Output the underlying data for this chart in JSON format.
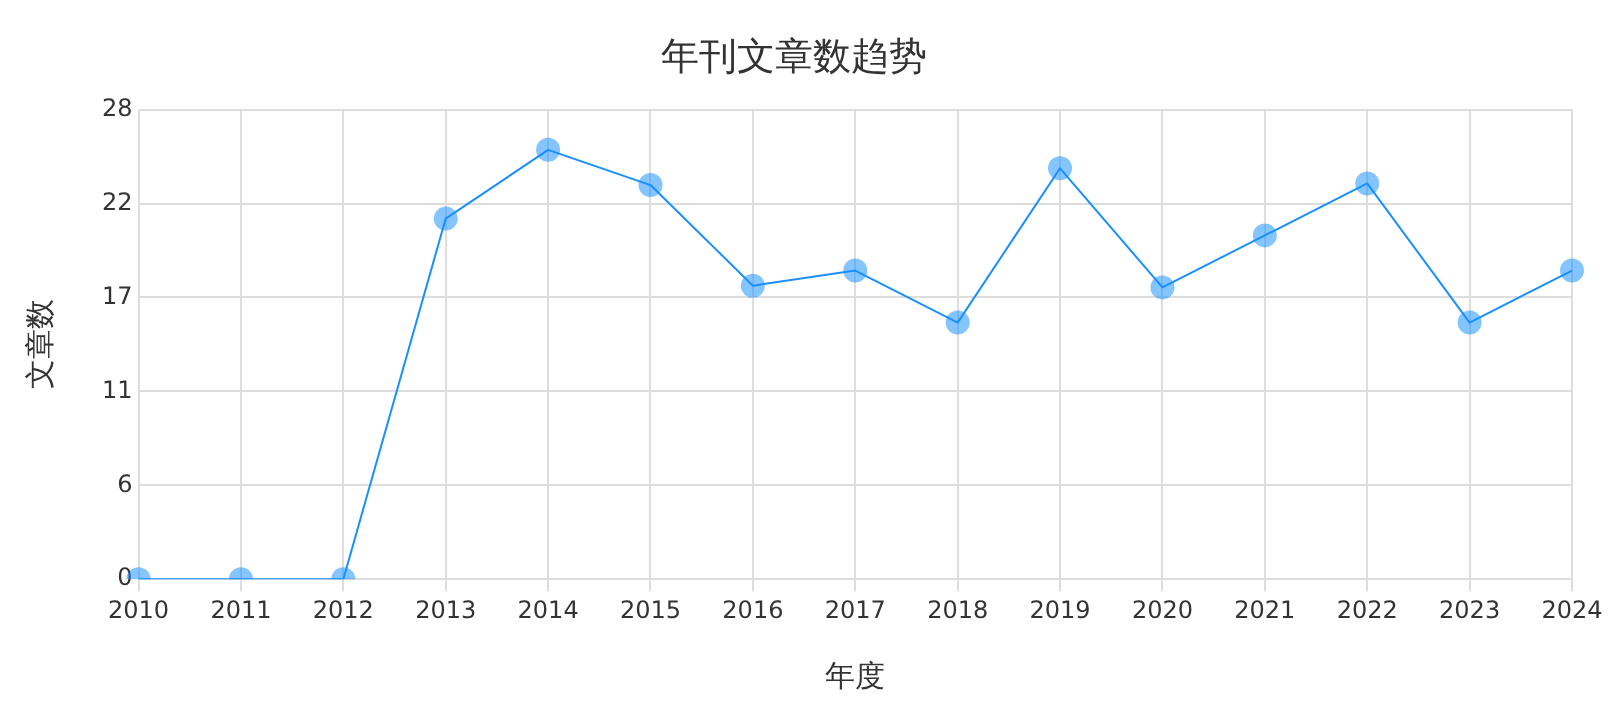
{
  "chart_data": {
    "type": "line",
    "title": "年刊文章数趋势",
    "xlabel": "年度",
    "ylabel": "文章数",
    "categories": [
      "2010",
      "2011",
      "2012",
      "2013",
      "2014",
      "2015",
      "2016",
      "2017",
      "2018",
      "2019",
      "2020",
      "2021",
      "2022",
      "2023",
      "2024"
    ],
    "series": [
      {
        "color": "#1890ff",
        "values": [
          0,
          0,
          0,
          21.5,
          25.6,
          23.5,
          17.5,
          18.4,
          15.3,
          24.5,
          17.4,
          20.5,
          23.6,
          15.3,
          18.4
        ]
      }
    ],
    "ylim": [
      0,
      28
    ],
    "yticks": [
      0,
      {
        "value": 5.6,
        "label": "6"
      },
      {
        "value": 11.2,
        "label": "11"
      },
      {
        "value": 16.8,
        "label": "17"
      },
      {
        "value": 22.4,
        "label": "22"
      },
      28
    ],
    "grid": true,
    "marker": "circle",
    "line_style": "solid",
    "legend": false
  }
}
